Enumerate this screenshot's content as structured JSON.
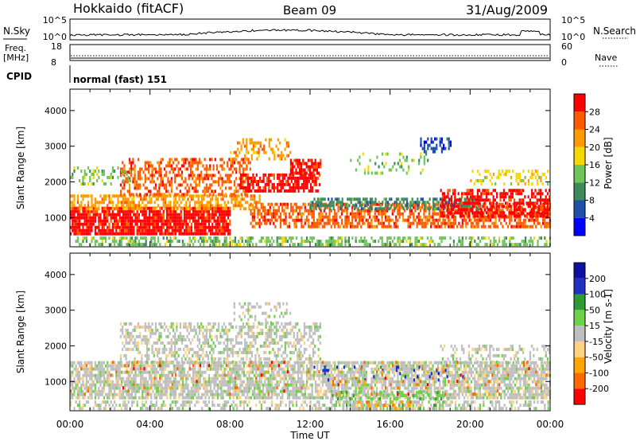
{
  "header": {
    "station": "Hokkaido (fitACF)",
    "beam": "Beam 09",
    "date": "31/Aug/2009"
  },
  "noise_panel": {
    "left_label": "N.Sky",
    "right_label": "N.Search",
    "left_ticks": [
      "10^5",
      "10^0"
    ],
    "right_ticks": [
      "10^5",
      "10^0"
    ]
  },
  "freq_panel": {
    "left_label_line1": "Freq.",
    "left_label_line2": "[MHz]",
    "right_label": "Nave",
    "left_ticks": [
      "18",
      "8"
    ],
    "right_ticks": [
      "60",
      "0"
    ]
  },
  "cpid_panel": {
    "label": "CPID",
    "text": "normal (fast) 151"
  },
  "colors": {
    "power_scale": [
      "#0000ff",
      "#1f4fa8",
      "#3f8a5a",
      "#6fc45a",
      "#f5d800",
      "#ff9a00",
      "#ff5a00",
      "#ff0000"
    ],
    "velocity_scale": [
      "#ff0000",
      "#ff6a00",
      "#ffa500",
      "#ffd280",
      "#bebebe",
      "#6fd04a",
      "#2e9a32",
      "#2030c0",
      "#1010a0"
    ]
  },
  "chart_data": [
    {
      "type": "heatmap",
      "name": "power",
      "ylabel": "Slant Range [km]",
      "x_ticks": [
        "00:00",
        "04:00",
        "08:00",
        "12:00",
        "16:00",
        "20:00",
        "00:00"
      ],
      "y_ticks": [
        1000,
        2000,
        3000,
        4000
      ],
      "ylim": [
        180,
        4600
      ],
      "xlim_hours": [
        0,
        24
      ],
      "colorbar": {
        "label": "Power [dB]",
        "ticks": [
          "4",
          "8",
          "12",
          "16",
          "20",
          "24",
          "28"
        ]
      },
      "regions": [
        {
          "t0": 0.0,
          "t1": 8.0,
          "r0": 500,
          "r1": 1300,
          "level": 7,
          "density": 0.85
        },
        {
          "t0": 0.0,
          "t1": 9.5,
          "r0": 1200,
          "r1": 1600,
          "level": 5,
          "density": 0.6
        },
        {
          "t0": 2.5,
          "t1": 9.0,
          "r0": 1600,
          "r1": 2600,
          "level": 6,
          "density": 0.45
        },
        {
          "t0": 8.5,
          "t1": 12.5,
          "r0": 1700,
          "r1": 2200,
          "level": 7,
          "density": 0.7
        },
        {
          "t0": 11.0,
          "t1": 12.5,
          "r0": 2200,
          "r1": 2600,
          "level": 7,
          "density": 0.85
        },
        {
          "t0": 8.0,
          "t1": 11.0,
          "r0": 2600,
          "r1": 3200,
          "level": 5,
          "density": 0.35
        },
        {
          "t0": 9.0,
          "t1": 24.0,
          "r0": 700,
          "r1": 1400,
          "level": 6,
          "density": 0.6
        },
        {
          "t0": 12.0,
          "t1": 20.5,
          "r0": 1200,
          "r1": 1500,
          "level": 2,
          "density": 0.55
        },
        {
          "t0": 18.5,
          "t1": 24.0,
          "r0": 1000,
          "r1": 1800,
          "level": 7,
          "density": 0.6
        },
        {
          "t0": 0.0,
          "t1": 24.0,
          "r0": 200,
          "r1": 400,
          "level": 3,
          "density": 0.5
        },
        {
          "t0": 0.0,
          "t1": 3.0,
          "r0": 1900,
          "r1": 2400,
          "level": 3,
          "density": 0.3
        },
        {
          "t0": 14.0,
          "t1": 18.0,
          "r0": 2200,
          "r1": 2800,
          "level": 3,
          "density": 0.2
        },
        {
          "t0": 17.5,
          "t1": 19.0,
          "r0": 2800,
          "r1": 3200,
          "level": 1,
          "density": 0.4
        },
        {
          "t0": 20.0,
          "t1": 24.0,
          "r0": 1900,
          "r1": 2300,
          "level": 4,
          "density": 0.3
        }
      ]
    },
    {
      "type": "heatmap",
      "name": "velocity",
      "ylabel": "Slant Range [km]",
      "xlabel": "Time UT",
      "x_ticks": [
        "00:00",
        "04:00",
        "08:00",
        "12:00",
        "16:00",
        "20:00",
        "00:00"
      ],
      "y_ticks": [
        1000,
        2000,
        3000,
        4000
      ],
      "ylim": [
        180,
        4600
      ],
      "xlim_hours": [
        0,
        24
      ],
      "colorbar": {
        "label": "Velocity [m s-1]",
        "ticks": [
          "200",
          "100",
          "50",
          "15",
          "-15",
          "-50",
          "-100",
          "-200"
        ]
      },
      "regions": [
        {
          "t0": 0.0,
          "t1": 24.0,
          "r0": 500,
          "r1": 1500,
          "level": 4,
          "density": 0.75
        },
        {
          "t0": 2.5,
          "t1": 12.5,
          "r0": 1500,
          "r1": 2600,
          "level": 4,
          "density": 0.45
        },
        {
          "t0": 8.0,
          "t1": 11.0,
          "r0": 2600,
          "r1": 3200,
          "level": 4,
          "density": 0.3
        },
        {
          "t0": 13.0,
          "t1": 19.0,
          "r0": 200,
          "r1": 700,
          "level": 5,
          "density": 0.4
        },
        {
          "t0": 14.0,
          "t1": 17.0,
          "r0": 200,
          "r1": 400,
          "level": 2,
          "density": 0.4
        },
        {
          "t0": 0.0,
          "t1": 24.0,
          "r0": 200,
          "r1": 400,
          "level": 4,
          "density": 0.45
        },
        {
          "t0": 18.5,
          "t1": 24.0,
          "r0": 1500,
          "r1": 2000,
          "level": 4,
          "density": 0.3
        },
        {
          "t0": 12.0,
          "t1": 20.0,
          "r0": 1000,
          "r1": 1400,
          "level": 7,
          "density": 0.08
        },
        {
          "t0": 0.0,
          "t1": 24.0,
          "r0": 600,
          "r1": 1500,
          "level": 1,
          "density": 0.04
        }
      ]
    }
  ]
}
